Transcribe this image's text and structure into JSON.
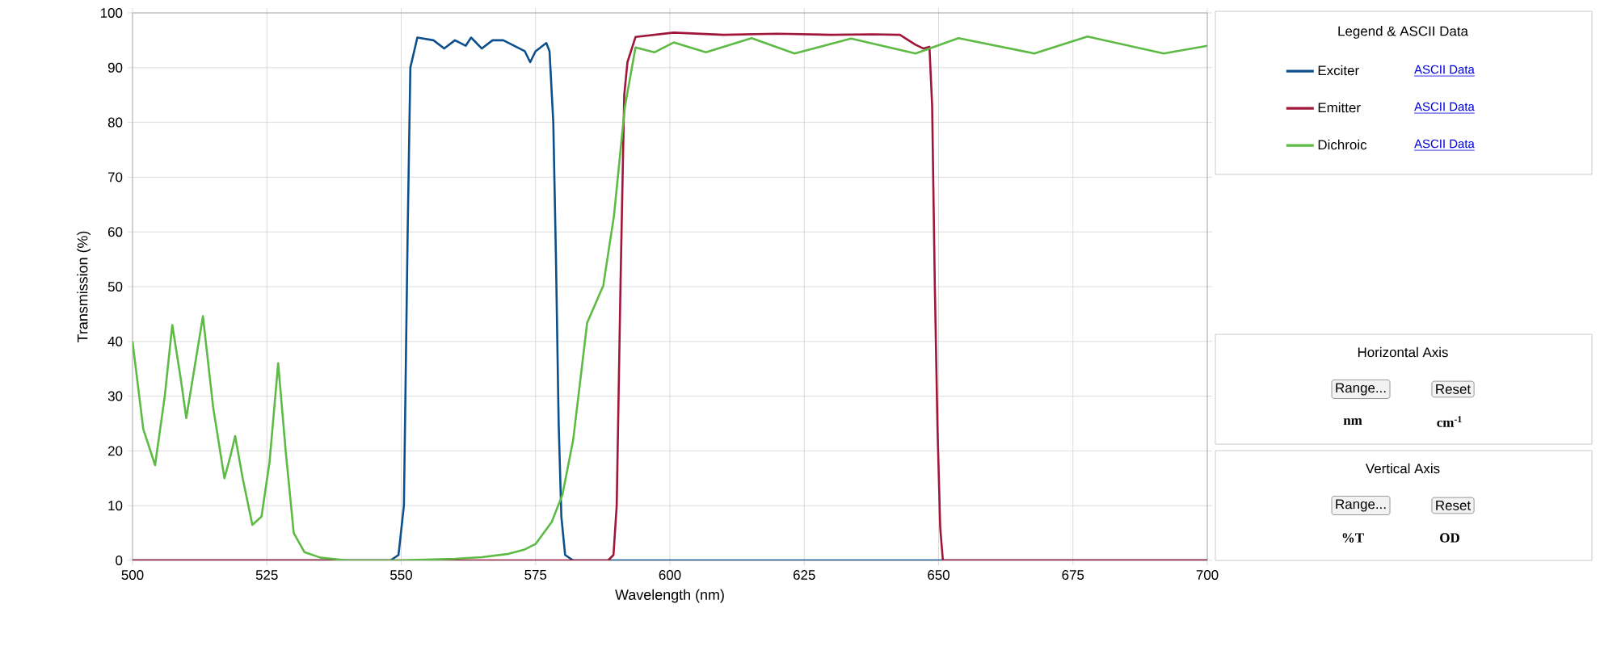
{
  "chart_data": {
    "type": "line",
    "xlabel": "Wavelength (nm)",
    "ylabel": "Transmission (%)",
    "legend_title": "Legend & ASCII Data",
    "xlim": [
      500,
      700
    ],
    "ylim": [
      0,
      100
    ],
    "xticks": [
      500,
      525,
      550,
      575,
      600,
      625,
      650,
      675,
      700
    ],
    "yticks": [
      0,
      10,
      20,
      30,
      40,
      50,
      60,
      70,
      80,
      90,
      100
    ],
    "grid": true,
    "legend": "right",
    "marker": "none",
    "line_style": "solid",
    "series": [
      {
        "name": "Exciter",
        "color": "#0d4f8b",
        "x": [
          500,
          540,
          548,
          549.5,
          550.5,
          551.2,
          551.7,
          553,
          556,
          558,
          560,
          562,
          563,
          565,
          567,
          569,
          571,
          573,
          574,
          575,
          577,
          577.6,
          578.3,
          578.8,
          579.3,
          579.8,
          580.5,
          582,
          620,
          700
        ],
        "values": [
          0,
          0,
          0,
          1,
          10,
          60,
          90,
          95.5,
          95,
          93.5,
          95,
          94,
          95.5,
          93.5,
          95,
          95,
          94,
          93,
          91,
          93,
          94.5,
          93,
          80,
          55,
          25,
          8,
          1,
          0,
          0,
          0
        ]
      },
      {
        "name": "Emitter",
        "color": "#a0163a",
        "x": [
          500,
          560,
          588.5,
          589.5,
          590.1,
          590.8,
          591.5,
          592.1,
          593.6,
          600.7,
          610,
          620,
          630,
          637.7,
          642.8,
          645.7,
          647.2,
          648.3,
          648.8,
          649.3,
          649.8,
          650.3,
          650.8,
          652,
          700
        ],
        "values": [
          0,
          0,
          0,
          1,
          10,
          50,
          85,
          91,
          95.6,
          96.4,
          96,
          96.2,
          96,
          96.1,
          96,
          94.2,
          93.5,
          93.8,
          83,
          50,
          24,
          6,
          0,
          0,
          0
        ]
      },
      {
        "name": "Dichroic",
        "color": "#5dbb45",
        "x": [
          500,
          502,
          504.2,
          506,
          507.4,
          509,
          510,
          511.5,
          513.1,
          515,
          517.1,
          518.2,
          519.1,
          520.5,
          522.3,
          524,
          525.5,
          527.1,
          528.5,
          530,
          532,
          535,
          540,
          550,
          560,
          565,
          570,
          573,
          575,
          578,
          580,
          582,
          584.6,
          587.6,
          589.6,
          591.6,
          593.6,
          597.1,
          600.7,
          606.7,
          615.2,
          623.2,
          633.7,
          645.7,
          653.7,
          667.8,
          677.7,
          691.9,
          700
        ],
        "values": [
          40,
          24,
          17.4,
          30,
          43,
          33,
          26,
          35,
          44.6,
          28,
          15,
          19,
          22.7,
          15,
          6.5,
          8,
          18,
          36,
          20,
          5,
          1.5,
          0.5,
          0,
          0,
          0.3,
          0.6,
          1.2,
          2,
          3,
          7,
          12,
          22,
          43.4,
          50.2,
          63,
          82.7,
          93.7,
          92.8,
          94.6,
          92.8,
          95.4,
          92.6,
          95.3,
          92.6,
          95.4,
          92.6,
          95.7,
          92.6,
          94
        ]
      }
    ],
    "annotations": [
      "ASCII Data",
      "ASCII Data",
      "ASCII Data",
      "Horizontal Axis",
      "Range...",
      "Reset",
      "nm",
      "cm$^{-1}$",
      "Vertical Axis",
      "Range...",
      "Reset",
      "%T",
      "OD"
    ]
  }
}
